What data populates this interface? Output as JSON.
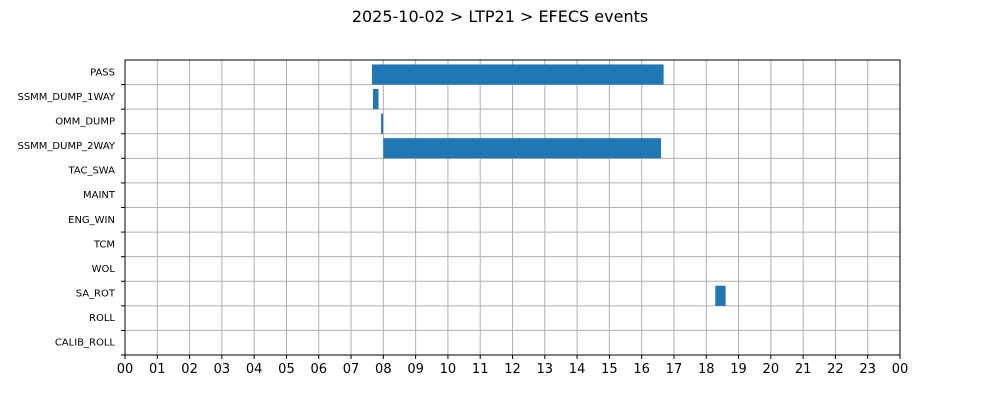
{
  "chart_data": {
    "type": "bar",
    "orientation": "horizontal",
    "title": "2025-10-02 > LTP21 > EFECS events",
    "xlabel": "",
    "ylabel": "",
    "grid": true,
    "x_unit": "hour of day",
    "xlim": [
      0,
      24
    ],
    "x_tick_labels": [
      "00",
      "01",
      "02",
      "03",
      "04",
      "05",
      "06",
      "07",
      "08",
      "09",
      "10",
      "11",
      "12",
      "13",
      "14",
      "15",
      "16",
      "17",
      "18",
      "19",
      "20",
      "21",
      "22",
      "23",
      "00"
    ],
    "categories": [
      "PASS",
      "SSMM_DUMP_1WAY",
      "OMM_DUMP",
      "SSMM_DUMP_2WAY",
      "TAC_SWA",
      "MAINT",
      "ENG_WIN",
      "TCM",
      "WOL",
      "SA_ROT",
      "ROLL",
      "CALIB_ROLL"
    ],
    "bar_color": "#1f77b4",
    "events": [
      {
        "category": "PASS",
        "start": 7.65,
        "end": 16.68
      },
      {
        "category": "SSMM_DUMP_1WAY",
        "start": 7.68,
        "end": 7.85
      },
      {
        "category": "OMM_DUMP",
        "start": 7.93,
        "end": 7.99
      },
      {
        "category": "SSMM_DUMP_2WAY",
        "start": 8.0,
        "end": 16.6
      },
      {
        "category": "SA_ROT",
        "start": 18.28,
        "end": 18.6
      }
    ]
  }
}
